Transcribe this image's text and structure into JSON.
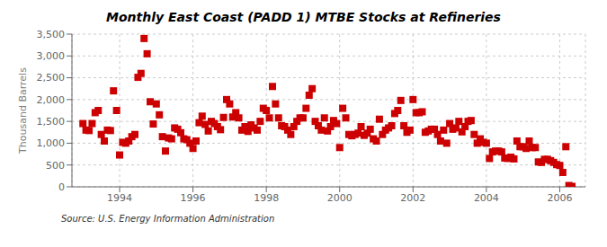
{
  "chart_data": {
    "type": "scatter",
    "title": "Monthly East Coast (PADD 1) MTBE Stocks at Refineries",
    "y_label": "Thousand Barrels",
    "annotations": [
      "Source: U.S. Energy Information Administration"
    ],
    "color": "#cc0000",
    "marker": "square",
    "grid": true,
    "xlim": [
      1992.7,
      2006.7
    ],
    "xticks": [
      1994,
      1996,
      1998,
      2000,
      2002,
      2004,
      2006
    ],
    "ylim": [
      0,
      3500
    ],
    "yticks": [
      0,
      500,
      {
        "value": 1000,
        "label": "1,000"
      },
      {
        "value": 1500,
        "label": "1,500"
      },
      {
        "value": 2000,
        "label": "2,000"
      },
      {
        "value": 2500,
        "label": "2,500"
      },
      {
        "value": 3000,
        "label": "3,000"
      },
      {
        "value": 3500,
        "label": "3,500"
      }
    ],
    "x": [
      1993.0,
      1993.083,
      1993.167,
      1993.25,
      1993.333,
      1993.417,
      1993.5,
      1993.583,
      1993.667,
      1993.75,
      1993.833,
      1993.917,
      1994.0,
      1994.083,
      1994.167,
      1994.25,
      1994.333,
      1994.417,
      1994.5,
      1994.583,
      1994.667,
      1994.75,
      1994.833,
      1994.917,
      1995.0,
      1995.083,
      1995.167,
      1995.25,
      1995.333,
      1995.417,
      1995.5,
      1995.583,
      1995.667,
      1995.75,
      1995.833,
      1995.917,
      1996.0,
      1996.083,
      1996.167,
      1996.25,
      1996.333,
      1996.417,
      1996.5,
      1996.583,
      1996.667,
      1996.75,
      1996.833,
      1996.917,
      1997.0,
      1997.083,
      1997.167,
      1997.25,
      1997.333,
      1997.417,
      1997.5,
      1997.583,
      1997.667,
      1997.75,
      1997.833,
      1997.917,
      1998.0,
      1998.083,
      1998.167,
      1998.25,
      1998.333,
      1998.417,
      1998.5,
      1998.583,
      1998.667,
      1998.75,
      1998.833,
      1998.917,
      1999.0,
      1999.083,
      1999.167,
      1999.25,
      1999.333,
      1999.417,
      1999.5,
      1999.583,
      1999.667,
      1999.75,
      1999.833,
      1999.917,
      2000.0,
      2000.083,
      2000.167,
      2000.25,
      2000.333,
      2000.417,
      2000.5,
      2000.583,
      2000.667,
      2000.75,
      2000.833,
      2000.917,
      2001.0,
      2001.083,
      2001.167,
      2001.25,
      2001.333,
      2001.417,
      2001.5,
      2001.583,
      2001.667,
      2001.75,
      2001.833,
      2001.917,
      2002.0,
      2002.083,
      2002.167,
      2002.25,
      2002.333,
      2002.417,
      2002.5,
      2002.583,
      2002.667,
      2002.75,
      2002.833,
      2002.917,
      2003.0,
      2003.083,
      2003.167,
      2003.25,
      2003.333,
      2003.417,
      2003.5,
      2003.583,
      2003.667,
      2003.75,
      2003.833,
      2003.917,
      2004.0,
      2004.083,
      2004.167,
      2004.25,
      2004.333,
      2004.417,
      2004.5,
      2004.583,
      2004.667,
      2004.75,
      2004.833,
      2004.917,
      2005.0,
      2005.083,
      2005.167,
      2005.25,
      2005.333,
      2005.417,
      2005.5,
      2005.583,
      2005.667,
      2005.75,
      2005.833,
      2005.917,
      2006.0,
      2006.083,
      2006.167,
      2006.25,
      2006.333
    ],
    "values": [
      1450,
      1300,
      1290,
      1450,
      1700,
      1750,
      1200,
      1050,
      1300,
      1290,
      2200,
      1750,
      730,
      1020,
      1000,
      1050,
      1150,
      1200,
      2510,
      2600,
      3400,
      3050,
      1950,
      1440,
      1900,
      1650,
      1150,
      820,
      1120,
      1100,
      1350,
      1320,
      1240,
      1100,
      1080,
      1000,
      880,
      1050,
      1470,
      1620,
      1430,
      1280,
      1500,
      1450,
      1380,
      1310,
      1590,
      2000,
      1900,
      1600,
      1700,
      1580,
      1300,
      1380,
      1270,
      1420,
      1350,
      1300,
      1500,
      1800,
      1750,
      1580,
      2300,
      1900,
      1580,
      1400,
      1380,
      1300,
      1200,
      1380,
      1500,
      1580,
      1580,
      1800,
      2100,
      2250,
      1500,
      1400,
      1300,
      1580,
      1280,
      1380,
      1520,
      1450,
      900,
      1800,
      1580,
      1200,
      1170,
      1200,
      1230,
      1380,
      1180,
      1230,
      1320,
      1100,
      1050,
      1550,
      1200,
      1300,
      1350,
      1400,
      1680,
      1750,
      1980,
      1400,
      1250,
      1300,
      2000,
      1700,
      1700,
      1720,
      1250,
      1280,
      1320,
      1320,
      1200,
      1050,
      1300,
      1000,
      1450,
      1320,
      1350,
      1500,
      1260,
      1380,
      1500,
      1520,
      1200,
      1000,
      1100,
      1020,
      1000,
      650,
      800,
      820,
      820,
      800,
      660,
      650,
      680,
      640,
      1050,
      920,
      920,
      880,
      1050,
      900,
      900,
      570,
      560,
      630,
      630,
      600,
      560,
      510,
      490,
      330,
      920,
      30,
      10
    ]
  }
}
